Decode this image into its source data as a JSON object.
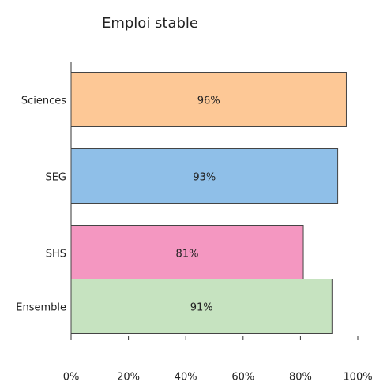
{
  "chart_data": {
    "type": "barh",
    "title": "Emploi stable",
    "categories": [
      "Sciences",
      "SEG",
      "SHS",
      "Ensemble"
    ],
    "values": [
      96,
      93,
      81,
      91
    ],
    "value_labels": [
      "96%",
      "93%",
      "81%",
      "91%"
    ],
    "colors": [
      "#fdc896",
      "#8fbfe8",
      "#f497c1",
      "#c6e3c0"
    ],
    "xlim": [
      0,
      100
    ],
    "xticks": [
      {
        "value": 0,
        "label": "0%"
      },
      {
        "value": 20,
        "label": "20%"
      },
      {
        "value": 40,
        "label": "40%"
      },
      {
        "value": 60,
        "label": "60%"
      },
      {
        "value": 80,
        "label": "80%"
      },
      {
        "value": 100,
        "label": "100%"
      }
    ]
  }
}
